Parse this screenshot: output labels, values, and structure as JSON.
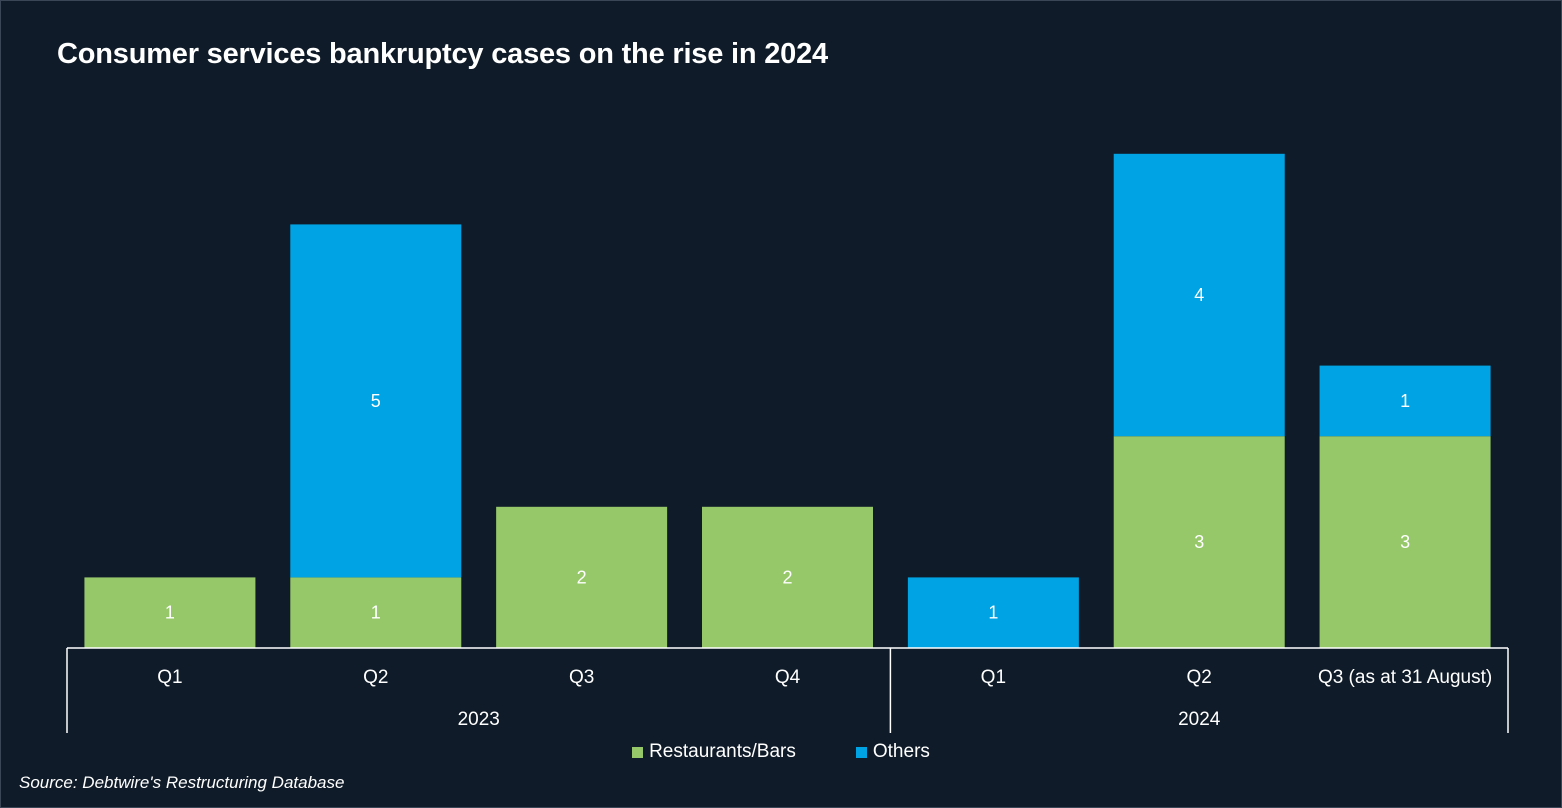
{
  "title": "Consumer services bankruptcy cases on the rise in 2024",
  "source": "Source: Debtwire's Restructuring Database",
  "colors": {
    "background": "#0f1b28",
    "restaurants_bars": "#96c86a",
    "others": "#00a3e3",
    "axis": "#ffffff"
  },
  "legend": {
    "restaurants_bars": "Restaurants/Bars",
    "others": "Others"
  },
  "chart_data": {
    "type": "bar",
    "stacked": true,
    "categories": [
      "Q1",
      "Q2",
      "Q3",
      "Q4",
      "Q1",
      "Q2",
      "Q3 (as at 31 August)"
    ],
    "groups": [
      {
        "label": "2023",
        "categories": [
          0,
          1,
          2,
          3
        ]
      },
      {
        "label": "2024",
        "categories": [
          4,
          5,
          6
        ]
      }
    ],
    "series": [
      {
        "name": "Restaurants/Bars",
        "values": [
          1,
          1,
          2,
          2,
          0,
          3,
          3
        ],
        "color": "#96c86a"
      },
      {
        "name": "Others",
        "values": [
          0,
          5,
          0,
          0,
          1,
          4,
          1
        ],
        "color": "#00a3e3"
      }
    ],
    "ylim": [
      0,
      7.0
    ],
    "grid": false,
    "data_labels": true,
    "legend_position": "bottom",
    "title": "Consumer services bankruptcy cases on the rise in 2024"
  }
}
